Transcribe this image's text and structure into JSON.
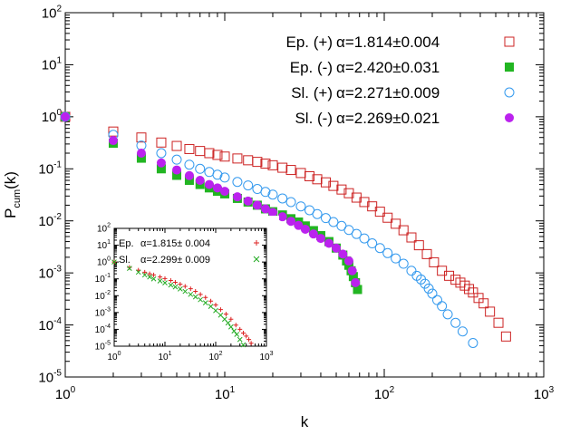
{
  "chart_data": [
    {
      "id": "main",
      "type": "scatter",
      "title": "",
      "xlabel": "k",
      "ylabel": "P_cum(k)",
      "xscale": "log",
      "yscale": "log",
      "xlim": [
        1,
        1000
      ],
      "ylim": [
        1e-05,
        100
      ],
      "x_ticks": [
        {
          "value": 1,
          "base": "10",
          "exp": "0"
        },
        {
          "value": 10,
          "base": "10",
          "exp": "1"
        },
        {
          "value": 100,
          "base": "10",
          "exp": "2"
        },
        {
          "value": 1000,
          "base": "10",
          "exp": "3"
        }
      ],
      "y_ticks": [
        {
          "value": 1e-05,
          "base": "10",
          "exp": "-5"
        },
        {
          "value": 0.0001,
          "base": "10",
          "exp": "-4"
        },
        {
          "value": 0.001,
          "base": "10",
          "exp": "-3"
        },
        {
          "value": 0.01,
          "base": "10",
          "exp": "-2"
        },
        {
          "value": 0.1,
          "base": "10",
          "exp": "-1"
        },
        {
          "value": 1,
          "base": "10",
          "exp": "0"
        },
        {
          "value": 10,
          "base": "10",
          "exp": "1"
        },
        {
          "value": 100,
          "base": "10",
          "exp": "2"
        }
      ],
      "legend_position": "top-right",
      "series": [
        {
          "name": "Ep. (+) α=1.814±0.004",
          "label_name": "Ep. (+)",
          "label_alpha": "α=1.814±0.004",
          "marker": "open-square",
          "color": "#cc2222",
          "x": [
            1,
            2,
            3,
            4,
            5,
            6,
            7,
            8,
            9,
            10,
            12,
            14,
            16,
            18,
            20,
            23,
            26,
            30,
            34,
            38,
            43,
            48,
            54,
            60,
            67,
            75,
            84,
            94,
            105,
            118,
            132,
            148,
            165,
            185,
            205,
            230,
            255,
            280,
            300,
            320,
            340,
            360,
            390,
            420,
            460,
            520,
            580
          ],
          "y": [
            1,
            0.52,
            0.4,
            0.32,
            0.275,
            0.24,
            0.22,
            0.2,
            0.185,
            0.172,
            0.158,
            0.146,
            0.136,
            0.126,
            0.117,
            0.105,
            0.095,
            0.083,
            0.072,
            0.063,
            0.055,
            0.047,
            0.04,
            0.034,
            0.028,
            0.023,
            0.019,
            0.015,
            0.0115,
            0.0088,
            0.0066,
            0.0048,
            0.0034,
            0.0023,
            0.0016,
            0.0011,
            0.00088,
            0.00074,
            0.00065,
            0.00057,
            0.00049,
            0.00042,
            0.00033,
            0.00026,
            0.00018,
            0.00011,
            6e-05
          ]
        },
        {
          "name": "Ep. (-) α=2.420±0.031",
          "label_name": "Ep. (-)",
          "label_alpha": "α=2.420±0.031",
          "marker": "filled-square",
          "color": "#22b522",
          "x": [
            1,
            2,
            3,
            4,
            5,
            6,
            7,
            8,
            9,
            10,
            12,
            14,
            16,
            18,
            20,
            23,
            26,
            29,
            32,
            36,
            40,
            45,
            50,
            55,
            58,
            60,
            62,
            64,
            66,
            68
          ],
          "y": [
            1,
            0.31,
            0.16,
            0.1,
            0.075,
            0.06,
            0.05,
            0.043,
            0.037,
            0.033,
            0.027,
            0.023,
            0.02,
            0.017,
            0.015,
            0.013,
            0.011,
            0.0095,
            0.008,
            0.0065,
            0.0052,
            0.004,
            0.003,
            0.0022,
            0.0017,
            0.0014,
            0.0011,
            0.00085,
            0.00065,
            0.00048
          ]
        },
        {
          "name": "Sl. (+) α=2.271±0.009",
          "label_name": "Sl. (+)",
          "label_alpha": "α=2.271±0.009",
          "marker": "open-circle",
          "color": "#3399ee",
          "x": [
            1,
            2,
            3,
            4,
            5,
            6,
            7,
            8,
            9,
            10,
            12,
            14,
            16,
            18,
            20,
            23,
            26,
            30,
            34,
            38,
            43,
            48,
            54,
            60,
            67,
            75,
            84,
            94,
            105,
            118,
            132,
            148,
            160,
            170,
            180,
            190,
            200,
            215,
            230,
            250,
            280,
            310,
            360
          ],
          "y": [
            1,
            0.45,
            0.28,
            0.2,
            0.15,
            0.12,
            0.1,
            0.087,
            0.077,
            0.068,
            0.056,
            0.048,
            0.041,
            0.036,
            0.032,
            0.027,
            0.023,
            0.019,
            0.016,
            0.0135,
            0.0113,
            0.0095,
            0.008,
            0.0067,
            0.0056,
            0.0046,
            0.0037,
            0.003,
            0.0024,
            0.0019,
            0.0015,
            0.0011,
            0.00088,
            0.00075,
            0.00062,
            0.0005,
            0.0004,
            0.0003,
            0.00023,
            0.00016,
            0.00011,
            7.5e-05,
            4.5e-05
          ]
        },
        {
          "name": "Sl. (-) α=2.269±0.021",
          "label_name": "Sl. (-)",
          "label_alpha": "α=2.269±0.021",
          "marker": "filled-circle",
          "color": "#bb22ee",
          "x": [
            1,
            2,
            3,
            4,
            5,
            6,
            7,
            8,
            9,
            10,
            12,
            14,
            16,
            18,
            20,
            23,
            26,
            29,
            32,
            36,
            40,
            45,
            50,
            55,
            60,
            63,
            66
          ],
          "y": [
            1,
            0.35,
            0.2,
            0.13,
            0.095,
            0.074,
            0.06,
            0.05,
            0.043,
            0.037,
            0.029,
            0.024,
            0.02,
            0.017,
            0.0145,
            0.012,
            0.0098,
            0.0082,
            0.0069,
            0.0056,
            0.0046,
            0.0037,
            0.003,
            0.0023,
            0.0017,
            0.0011,
            0.00065
          ]
        }
      ]
    },
    {
      "id": "inset",
      "type": "scatter",
      "xscale": "log",
      "yscale": "log",
      "xlim": [
        1,
        1000
      ],
      "ylim": [
        1e-05,
        100
      ],
      "x_ticks": [
        {
          "value": 1,
          "base": "10",
          "exp": "0"
        },
        {
          "value": 10,
          "base": "10",
          "exp": "1"
        },
        {
          "value": 100,
          "base": "10",
          "exp": "2"
        },
        {
          "value": 1000,
          "base": "10",
          "exp": "3"
        }
      ],
      "y_ticks": [
        {
          "value": 1e-05,
          "base": "10",
          "exp": "-5"
        },
        {
          "value": 0.0001,
          "base": "10",
          "exp": "-4"
        },
        {
          "value": 0.001,
          "base": "10",
          "exp": "-3"
        },
        {
          "value": 0.01,
          "base": "10",
          "exp": "-2"
        },
        {
          "value": 0.1,
          "base": "10",
          "exp": "-1"
        },
        {
          "value": 1,
          "base": "10",
          "exp": "0"
        },
        {
          "value": 10,
          "base": "10",
          "exp": "1"
        },
        {
          "value": 100,
          "base": "10",
          "exp": "2"
        }
      ],
      "legend_position": "top-right",
      "series": [
        {
          "name": "Ep. α=1.815± 0.004",
          "label_name": "Ep.",
          "label_alpha": "α=1.815± 0.004",
          "marker": "plus",
          "color": "#dd2222",
          "x": [
            1,
            2,
            3,
            4,
            5,
            6,
            8,
            10,
            13,
            16,
            20,
            25,
            32,
            40,
            50,
            63,
            80,
            100,
            125,
            160,
            200,
            250,
            300,
            350,
            400,
            450,
            500
          ],
          "y": [
            1,
            0.48,
            0.33,
            0.25,
            0.2,
            0.17,
            0.13,
            0.105,
            0.08,
            0.063,
            0.048,
            0.036,
            0.026,
            0.018,
            0.012,
            0.0078,
            0.0048,
            0.0028,
            0.0015,
            0.0008,
            0.0004,
            0.00018,
            0.0001,
            6e-05,
            4e-05,
            2.5e-05,
            1.5e-05
          ]
        },
        {
          "name": "Sl. α=2.299± 0.009",
          "label_name": "Sl.",
          "label_alpha": "α=2.299± 0.009",
          "marker": "cross",
          "color": "#22aa22",
          "x": [
            1,
            2,
            3,
            4,
            5,
            6,
            8,
            10,
            13,
            16,
            20,
            25,
            32,
            40,
            50,
            63,
            80,
            100,
            125,
            150,
            175,
            200,
            230,
            260,
            300,
            350
          ],
          "y": [
            1,
            0.42,
            0.25,
            0.17,
            0.13,
            0.1,
            0.075,
            0.058,
            0.043,
            0.033,
            0.025,
            0.018,
            0.012,
            0.0085,
            0.0058,
            0.0038,
            0.0023,
            0.0013,
            0.0007,
            0.0004,
            0.00024,
            0.00014,
            8e-05,
            5e-05,
            2.5e-05,
            1.2e-05
          ]
        }
      ]
    }
  ]
}
